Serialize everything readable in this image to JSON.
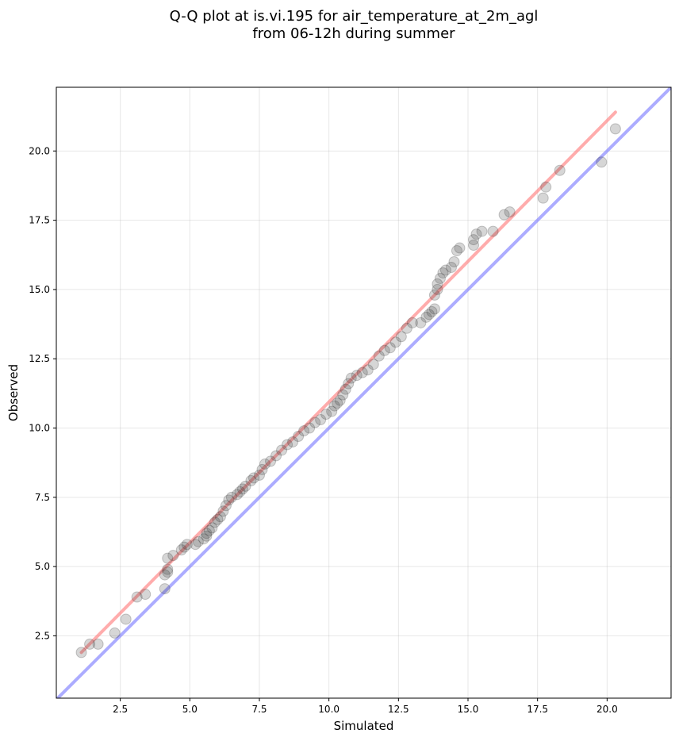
{
  "chart_data": {
    "type": "scatter",
    "title_lines": [
      "Q-Q plot at is.vi.195 for air_temperature_at_2m_agl",
      "from 06-12h during summer"
    ],
    "xlabel": "Simulated",
    "ylabel": "Observed",
    "xlim": [
      0.2,
      22.3
    ],
    "ylim": [
      0.25,
      22.3
    ],
    "xticks": [
      2.5,
      5.0,
      7.5,
      10.0,
      12.5,
      15.0,
      17.5,
      20.0
    ],
    "yticks": [
      2.5,
      5.0,
      7.5,
      10.0,
      12.5,
      15.0,
      17.5,
      20.0
    ],
    "xtick_labels": [
      "2.5",
      "5.0",
      "7.5",
      "10.0",
      "12.5",
      "15.0",
      "17.5",
      "20.0"
    ],
    "ytick_labels": [
      "2.5",
      "5.0",
      "7.5",
      "10.0",
      "12.5",
      "15.0",
      "17.5",
      "20.0"
    ],
    "grid": true,
    "series": [
      {
        "role": "quantiles",
        "color": "#333333",
        "points": [
          [
            1.1,
            1.9
          ],
          [
            1.4,
            2.2
          ],
          [
            1.7,
            2.2
          ],
          [
            2.3,
            2.6
          ],
          [
            2.7,
            3.1
          ],
          [
            3.1,
            3.9
          ],
          [
            3.4,
            4.0
          ],
          [
            4.1,
            4.2
          ],
          [
            4.1,
            4.7
          ],
          [
            4.2,
            4.8
          ],
          [
            4.2,
            4.9
          ],
          [
            4.2,
            5.3
          ],
          [
            4.4,
            5.4
          ],
          [
            4.7,
            5.6
          ],
          [
            4.8,
            5.7
          ],
          [
            4.9,
            5.8
          ],
          [
            5.2,
            5.8
          ],
          [
            5.3,
            5.9
          ],
          [
            5.5,
            6.0
          ],
          [
            5.6,
            6.1
          ],
          [
            5.6,
            6.2
          ],
          [
            5.7,
            6.3
          ],
          [
            5.8,
            6.4
          ],
          [
            5.9,
            6.6
          ],
          [
            6.0,
            6.7
          ],
          [
            6.1,
            6.8
          ],
          [
            6.2,
            7.0
          ],
          [
            6.3,
            7.2
          ],
          [
            6.4,
            7.4
          ],
          [
            6.5,
            7.5
          ],
          [
            6.7,
            7.6
          ],
          [
            6.8,
            7.7
          ],
          [
            6.9,
            7.8
          ],
          [
            7.0,
            7.9
          ],
          [
            7.2,
            8.1
          ],
          [
            7.3,
            8.2
          ],
          [
            7.5,
            8.3
          ],
          [
            7.6,
            8.5
          ],
          [
            7.7,
            8.7
          ],
          [
            7.9,
            8.8
          ],
          [
            8.1,
            9.0
          ],
          [
            8.3,
            9.2
          ],
          [
            8.5,
            9.4
          ],
          [
            8.7,
            9.5
          ],
          [
            8.9,
            9.7
          ],
          [
            9.1,
            9.9
          ],
          [
            9.3,
            10.0
          ],
          [
            9.5,
            10.2
          ],
          [
            9.7,
            10.3
          ],
          [
            9.9,
            10.5
          ],
          [
            10.1,
            10.6
          ],
          [
            10.2,
            10.8
          ],
          [
            10.3,
            10.9
          ],
          [
            10.4,
            11.0
          ],
          [
            10.5,
            11.2
          ],
          [
            10.6,
            11.4
          ],
          [
            10.7,
            11.6
          ],
          [
            10.8,
            11.8
          ],
          [
            11.0,
            11.9
          ],
          [
            11.2,
            12.0
          ],
          [
            11.4,
            12.1
          ],
          [
            11.6,
            12.3
          ],
          [
            11.8,
            12.6
          ],
          [
            12.0,
            12.8
          ],
          [
            12.2,
            12.9
          ],
          [
            12.4,
            13.1
          ],
          [
            12.6,
            13.3
          ],
          [
            12.8,
            13.6
          ],
          [
            13.0,
            13.8
          ],
          [
            13.3,
            13.8
          ],
          [
            13.5,
            14.0
          ],
          [
            13.6,
            14.1
          ],
          [
            13.7,
            14.2
          ],
          [
            13.8,
            14.3
          ],
          [
            13.8,
            14.8
          ],
          [
            13.9,
            15.0
          ],
          [
            13.9,
            15.2
          ],
          [
            14.0,
            15.4
          ],
          [
            14.1,
            15.6
          ],
          [
            14.2,
            15.7
          ],
          [
            14.4,
            15.8
          ],
          [
            14.5,
            16.0
          ],
          [
            14.6,
            16.4
          ],
          [
            14.7,
            16.5
          ],
          [
            15.2,
            16.6
          ],
          [
            15.2,
            16.8
          ],
          [
            15.3,
            17.0
          ],
          [
            15.5,
            17.1
          ],
          [
            15.9,
            17.1
          ],
          [
            16.3,
            17.7
          ],
          [
            16.5,
            17.8
          ],
          [
            17.7,
            18.3
          ],
          [
            17.8,
            18.7
          ],
          [
            18.3,
            19.3
          ],
          [
            19.8,
            19.6
          ],
          [
            20.3,
            20.8
          ]
        ]
      },
      {
        "role": "fit-line",
        "color": "#ff7f7f",
        "points": [
          [
            1.1,
            1.9
          ],
          [
            20.3,
            21.4
          ]
        ]
      },
      {
        "role": "identity-line",
        "color": "#7f7fff",
        "points": [
          [
            0.2,
            0.2
          ],
          [
            22.3,
            22.3
          ]
        ]
      }
    ]
  }
}
